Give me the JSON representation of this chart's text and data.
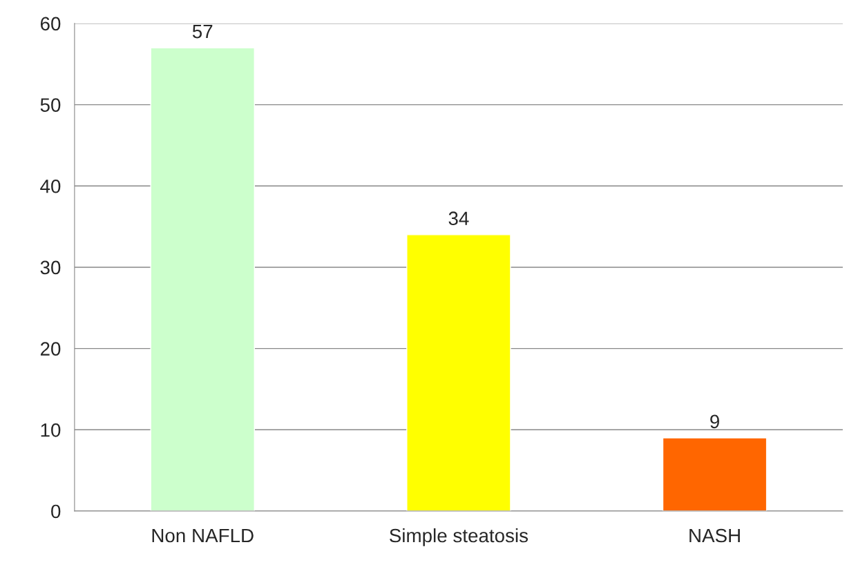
{
  "chart_data": {
    "type": "bar",
    "categories": [
      "Non NAFLD",
      "Simple steatosis",
      "NASH"
    ],
    "values": [
      57,
      34,
      9
    ],
    "colors": [
      "#ccffcc",
      "#ffff00",
      "#ff6600"
    ],
    "ylim": [
      0,
      60
    ],
    "yticks": [
      0,
      10,
      20,
      30,
      40,
      50,
      60
    ],
    "grid": "y",
    "data_labels": true,
    "legend": false
  }
}
